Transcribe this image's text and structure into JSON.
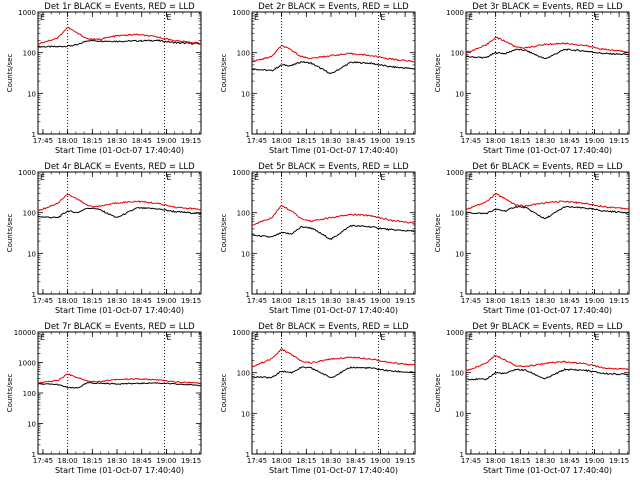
{
  "colors": {
    "events": "#000000",
    "lld": "#e00000",
    "axes": "#000000",
    "background": "#ffffff"
  },
  "chart_data": [
    {
      "type": "line",
      "title": "Det 1r BLACK = Events, RED = LLD",
      "xlabel": "Start Time (01-Oct-07 17:40:40)",
      "ylabel": "Counts/sec",
      "xlim": [
        17.7,
        19.35
      ],
      "ylim": [
        1,
        1000
      ],
      "yscale": "log",
      "xticks": [
        "17:45",
        "18:00",
        "18:15",
        "18:30",
        "18:45",
        "19:00",
        "19:15"
      ],
      "yticks": [
        "1",
        "10",
        "100",
        "1000"
      ],
      "marker_label": "E",
      "vlines": [
        18.0,
        18.98
      ],
      "x": [
        17.7,
        17.9,
        18.0,
        18.1,
        18.2,
        18.3,
        18.5,
        18.7,
        18.9,
        19.1,
        19.35
      ],
      "series": [
        {
          "name": "Events",
          "color": "#000000",
          "values": [
            140,
            140,
            145,
            155,
            200,
            195,
            190,
            195,
            200,
            175,
            165
          ]
        },
        {
          "name": "LLD",
          "color": "#e00000",
          "values": [
            165,
            230,
            420,
            300,
            220,
            210,
            260,
            280,
            245,
            195,
            170
          ]
        }
      ]
    },
    {
      "type": "line",
      "title": "Det 2r BLACK = Events, RED = LLD",
      "xlabel": "Start Time (01-Oct-07 17:40:40)",
      "ylabel": "Counts/sec",
      "xlim": [
        17.7,
        19.35
      ],
      "ylim": [
        1,
        1000
      ],
      "yscale": "log",
      "xticks": [
        "17:45",
        "18:00",
        "18:15",
        "18:30",
        "18:45",
        "19:00",
        "19:15"
      ],
      "yticks": [
        "1",
        "10",
        "100",
        "1000"
      ],
      "marker_label": "E",
      "vlines": [
        18.0,
        18.98
      ],
      "x": [
        17.7,
        17.9,
        18.0,
        18.1,
        18.2,
        18.3,
        18.5,
        18.7,
        18.9,
        19.1,
        19.35
      ],
      "series": [
        {
          "name": "Events",
          "color": "#000000",
          "values": [
            40,
            36,
            50,
            48,
            60,
            55,
            30,
            58,
            55,
            45,
            40
          ]
        },
        {
          "name": "LLD",
          "color": "#e00000",
          "values": [
            60,
            80,
            150,
            115,
            80,
            72,
            85,
            95,
            85,
            70,
            60
          ]
        }
      ]
    },
    {
      "type": "line",
      "title": "Det 3r BLACK = Events, RED = LLD",
      "xlabel": "Start Time (01-Oct-07 17:40:40)",
      "ylabel": "Counts/sec",
      "xlim": [
        17.7,
        19.35
      ],
      "ylim": [
        1,
        1000
      ],
      "yscale": "log",
      "xticks": [
        "17:45",
        "18:00",
        "18:15",
        "18:30",
        "18:45",
        "19:00",
        "19:15"
      ],
      "yticks": [
        "1",
        "10",
        "100",
        "1000"
      ],
      "marker_label": "E",
      "vlines": [
        18.0,
        18.98
      ],
      "x": [
        17.7,
        17.9,
        18.0,
        18.1,
        18.2,
        18.3,
        18.5,
        18.7,
        18.9,
        19.1,
        19.35
      ],
      "series": [
        {
          "name": "Events",
          "color": "#000000",
          "values": [
            80,
            75,
            100,
            95,
            120,
            115,
            70,
            120,
            110,
            95,
            90
          ]
        },
        {
          "name": "LLD",
          "color": "#e00000",
          "values": [
            100,
            150,
            240,
            190,
            140,
            130,
            160,
            170,
            150,
            120,
            105
          ]
        }
      ]
    },
    {
      "type": "line",
      "title": "Det 4r BLACK = Events, RED = LLD",
      "xlabel": "Start Time (01-Oct-07 17:40:40)",
      "ylabel": "Counts/sec",
      "xlim": [
        17.7,
        19.35
      ],
      "ylim": [
        1,
        1000
      ],
      "yscale": "log",
      "xticks": [
        "17:45",
        "18:00",
        "18:15",
        "18:30",
        "18:45",
        "19:00",
        "19:15"
      ],
      "yticks": [
        "1",
        "10",
        "100",
        "1000"
      ],
      "marker_label": "E",
      "vlines": [
        18.0,
        18.98
      ],
      "x": [
        17.7,
        17.9,
        18.0,
        18.1,
        18.2,
        18.3,
        18.5,
        18.7,
        18.9,
        19.1,
        19.35
      ],
      "series": [
        {
          "name": "Events",
          "color": "#000000",
          "values": [
            80,
            75,
            110,
            100,
            130,
            125,
            75,
            130,
            125,
            105,
            95
          ]
        },
        {
          "name": "LLD",
          "color": "#e00000",
          "values": [
            110,
            170,
            290,
            215,
            150,
            140,
            175,
            190,
            170,
            135,
            120
          ]
        }
      ]
    },
    {
      "type": "line",
      "title": "Det 5r BLACK = Events, RED = LLD",
      "xlabel": "Start Time (01-Oct-07 17:40:40)",
      "ylabel": "Counts/sec",
      "xlim": [
        17.7,
        19.35
      ],
      "ylim": [
        1,
        1000
      ],
      "yscale": "log",
      "xticks": [
        "17:45",
        "18:00",
        "18:15",
        "18:30",
        "18:45",
        "19:00",
        "19:15"
      ],
      "yticks": [
        "1",
        "10",
        "100",
        "1000"
      ],
      "marker_label": "E",
      "vlines": [
        18.0,
        18.98
      ],
      "x": [
        17.7,
        17.9,
        18.0,
        18.1,
        18.2,
        18.3,
        18.5,
        18.7,
        18.9,
        19.1,
        19.35
      ],
      "series": [
        {
          "name": "Events",
          "color": "#000000",
          "values": [
            28,
            25,
            32,
            30,
            45,
            42,
            22,
            48,
            45,
            38,
            35
          ]
        },
        {
          "name": "LLD",
          "color": "#e00000",
          "values": [
            50,
            75,
            150,
            110,
            70,
            62,
            75,
            90,
            85,
            65,
            55
          ]
        }
      ]
    },
    {
      "type": "line",
      "title": "Det 6r BLACK = Events, RED = LLD",
      "xlabel": "Start Time (01-Oct-07 17:40:40)",
      "ylabel": "Counts/sec",
      "xlim": [
        17.7,
        19.35
      ],
      "ylim": [
        1,
        1000
      ],
      "yscale": "log",
      "xticks": [
        "17:45",
        "18:00",
        "18:15",
        "18:30",
        "18:45",
        "19:00",
        "19:15"
      ],
      "yticks": [
        "1",
        "10",
        "100",
        "1000"
      ],
      "marker_label": "E",
      "vlines": [
        18.0,
        18.98
      ],
      "x": [
        17.7,
        17.9,
        18.0,
        18.1,
        18.2,
        18.3,
        18.5,
        18.7,
        18.9,
        19.1,
        19.35
      ],
      "series": [
        {
          "name": "Events",
          "color": "#000000",
          "values": [
            100,
            95,
            120,
            110,
            140,
            135,
            70,
            140,
            130,
            110,
            100
          ]
        },
        {
          "name": "LLD",
          "color": "#e00000",
          "values": [
            120,
            180,
            290,
            220,
            155,
            145,
            175,
            190,
            170,
            140,
            125
          ]
        }
      ]
    },
    {
      "type": "line",
      "title": "Det 7r BLACK = Events, RED = LLD",
      "xlabel": "Start Time (01-Oct-07 17:40:40)",
      "ylabel": "Counts/sec",
      "xlim": [
        17.7,
        19.35
      ],
      "ylim": [
        1,
        10000
      ],
      "yscale": "log",
      "xticks": [
        "17:45",
        "18:00",
        "18:15",
        "18:30",
        "18:45",
        "19:00",
        "19:15"
      ],
      "yticks": [
        "1",
        "10",
        "100",
        "1000",
        "10000"
      ],
      "marker_label": "E",
      "vlines": [
        18.0,
        18.98
      ],
      "x": [
        17.7,
        17.9,
        18.0,
        18.1,
        18.2,
        18.3,
        18.5,
        18.7,
        18.9,
        19.1,
        19.35
      ],
      "series": [
        {
          "name": "Events",
          "color": "#000000",
          "values": [
            200,
            190,
            150,
            145,
            215,
            210,
            200,
            205,
            215,
            195,
            180
          ]
        },
        {
          "name": "LLD",
          "color": "#e00000",
          "values": [
            210,
            260,
            420,
            320,
            250,
            235,
            280,
            290,
            270,
            230,
            210
          ]
        }
      ]
    },
    {
      "type": "line",
      "title": "Det 8r BLACK = Events, RED = LLD",
      "xlabel": "Start Time (01-Oct-07 17:40:40)",
      "ylabel": "Counts/sec",
      "xlim": [
        17.7,
        19.35
      ],
      "ylim": [
        1,
        1000
      ],
      "yscale": "log",
      "xticks": [
        "17:45",
        "18:00",
        "18:15",
        "18:30",
        "18:45",
        "19:00",
        "19:15"
      ],
      "yticks": [
        "1",
        "10",
        "100",
        "1000"
      ],
      "marker_label": "E",
      "vlines": [
        18.0,
        18.98
      ],
      "x": [
        17.7,
        17.9,
        18.0,
        18.1,
        18.2,
        18.3,
        18.5,
        18.7,
        18.9,
        19.1,
        19.35
      ],
      "series": [
        {
          "name": "Events",
          "color": "#000000",
          "values": [
            80,
            75,
            110,
            100,
            135,
            130,
            75,
            135,
            130,
            110,
            100
          ]
        },
        {
          "name": "LLD",
          "color": "#e00000",
          "values": [
            140,
            220,
            380,
            280,
            190,
            175,
            215,
            240,
            220,
            175,
            155
          ]
        }
      ]
    },
    {
      "type": "line",
      "title": "Det 9r BLACK = Events, RED = LLD",
      "xlabel": "Start Time (01-Oct-07 17:40:40)",
      "ylabel": "Counts/sec",
      "xlim": [
        17.7,
        19.35
      ],
      "ylim": [
        1,
        1000
      ],
      "yscale": "log",
      "xticks": [
        "17:45",
        "18:00",
        "18:15",
        "18:30",
        "18:45",
        "19:00",
        "19:15"
      ],
      "yticks": [
        "1",
        "10",
        "100",
        "1000"
      ],
      "marker_label": "E",
      "vlines": [
        18.0,
        18.98
      ],
      "x": [
        17.7,
        17.9,
        18.0,
        18.1,
        18.2,
        18.3,
        18.5,
        18.7,
        18.9,
        19.1,
        19.35
      ],
      "series": [
        {
          "name": "Events",
          "color": "#000000",
          "values": [
            70,
            68,
            100,
            95,
            120,
            115,
            70,
            120,
            115,
            95,
            90
          ]
        },
        {
          "name": "LLD",
          "color": "#e00000",
          "values": [
            110,
            170,
            270,
            205,
            150,
            140,
            170,
            185,
            165,
            130,
            120
          ]
        }
      ]
    }
  ]
}
